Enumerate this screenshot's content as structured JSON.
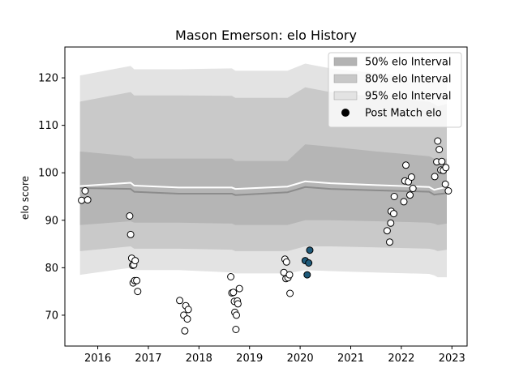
{
  "chart_data": {
    "type": "scatter",
    "title": "Mason Emerson: elo History",
    "xlabel": "",
    "ylabel": "elo score",
    "xlim": [
      2015.35,
      2023.3
    ],
    "ylim": [
      63.5,
      126.5
    ],
    "x_ticks": [
      2016,
      2017,
      2018,
      2019,
      2020,
      2021,
      2022,
      2023
    ],
    "y_ticks": [
      70,
      80,
      90,
      100,
      110,
      120
    ],
    "grid": false,
    "legend_position": "top-right",
    "legend": [
      {
        "label": "50% elo Interval",
        "kind": "band",
        "color": "#b3b3b3"
      },
      {
        "label": "80% elo Interval",
        "kind": "band",
        "color": "#c8c8c8"
      },
      {
        "label": "95% elo Interval",
        "kind": "band",
        "color": "#e3e3e3"
      },
      {
        "label": "Post Match elo",
        "kind": "marker",
        "color": "#000000"
      }
    ],
    "colors": {
      "band_95": "#e3e3e3",
      "band_80": "#c9c9c9",
      "band_50": "#b5b5b5",
      "median_line": "#8c8c8c",
      "mean_line": "#ffffff",
      "point_fill": "#ffffff",
      "highlight_fill": "#1f5a7a",
      "point_edge": "#000000"
    },
    "intervals": {
      "x": [
        2015.65,
        2016.65,
        2016.72,
        2017.6,
        2018.65,
        2018.72,
        2019.75,
        2020.1,
        2020.6,
        2021.5,
        2022.55,
        2022.65,
        2022.72,
        2022.9
      ],
      "upper95": [
        120.5,
        122.5,
        121.8,
        121.8,
        122.0,
        121.5,
        121.5,
        123.0,
        122.0,
        121.0,
        120.0,
        119.5,
        119.0,
        119.5
      ],
      "upper80": [
        115.0,
        117.0,
        116.3,
        116.3,
        116.2,
        115.8,
        115.8,
        118.0,
        117.0,
        116.0,
        115.0,
        114.5,
        114.0,
        114.5
      ],
      "upper50": [
        104.5,
        103.5,
        103.0,
        103.0,
        103.0,
        102.5,
        102.5,
        106.0,
        105.5,
        104.5,
        103.5,
        103.0,
        102.5,
        103.0
      ],
      "lower50": [
        89.0,
        89.8,
        89.5,
        89.5,
        89.3,
        89.0,
        89.0,
        90.0,
        90.0,
        89.8,
        89.5,
        89.3,
        89.0,
        89.3
      ],
      "lower80": [
        83.5,
        84.5,
        84.0,
        84.0,
        83.8,
        83.5,
        83.5,
        84.5,
        84.5,
        84.3,
        84.0,
        83.8,
        83.5,
        83.8
      ],
      "lower95": [
        78.5,
        80.0,
        79.5,
        79.5,
        79.0,
        78.8,
        78.8,
        79.5,
        79.3,
        79.0,
        78.7,
        78.4,
        78.0,
        78.0
      ],
      "median": [
        96.8,
        96.6,
        96.0,
        95.6,
        95.6,
        95.3,
        95.9,
        97.0,
        96.6,
        96.3,
        96.0,
        95.4,
        95.5,
        95.7
      ],
      "mean": [
        97.2,
        97.9,
        97.3,
        96.9,
        96.9,
        96.6,
        97.1,
        98.2,
        97.8,
        97.4,
        97.0,
        96.4,
        96.6,
        97.0
      ]
    },
    "points": [
      {
        "x": 2015.68,
        "y": 94.2
      },
      {
        "x": 2015.75,
        "y": 96.2
      },
      {
        "x": 2015.8,
        "y": 94.3
      },
      {
        "x": 2016.63,
        "y": 90.9
      },
      {
        "x": 2016.65,
        "y": 87.0
      },
      {
        "x": 2016.67,
        "y": 82.0
      },
      {
        "x": 2016.69,
        "y": 80.5
      },
      {
        "x": 2016.71,
        "y": 80.6
      },
      {
        "x": 2016.74,
        "y": 81.5
      },
      {
        "x": 2016.7,
        "y": 76.8
      },
      {
        "x": 2016.73,
        "y": 77.3
      },
      {
        "x": 2016.77,
        "y": 77.3
      },
      {
        "x": 2016.79,
        "y": 75.0
      },
      {
        "x": 2017.62,
        "y": 73.1
      },
      {
        "x": 2017.7,
        "y": 70.0
      },
      {
        "x": 2017.72,
        "y": 66.7
      },
      {
        "x": 2017.74,
        "y": 72.0
      },
      {
        "x": 2017.77,
        "y": 69.2
      },
      {
        "x": 2017.79,
        "y": 71.2
      },
      {
        "x": 2018.63,
        "y": 78.1
      },
      {
        "x": 2018.65,
        "y": 74.7
      },
      {
        "x": 2018.68,
        "y": 74.8
      },
      {
        "x": 2018.7,
        "y": 72.9
      },
      {
        "x": 2018.71,
        "y": 70.6
      },
      {
        "x": 2018.74,
        "y": 70.0
      },
      {
        "x": 2018.76,
        "y": 73.0
      },
      {
        "x": 2018.77,
        "y": 72.4
      },
      {
        "x": 2018.8,
        "y": 75.6
      },
      {
        "x": 2018.73,
        "y": 67.0
      },
      {
        "x": 2019.68,
        "y": 79.0
      },
      {
        "x": 2019.7,
        "y": 81.8
      },
      {
        "x": 2019.73,
        "y": 81.2
      },
      {
        "x": 2019.72,
        "y": 77.7
      },
      {
        "x": 2019.76,
        "y": 77.9
      },
      {
        "x": 2019.79,
        "y": 78.5
      },
      {
        "x": 2019.8,
        "y": 74.6
      },
      {
        "x": 2020.1,
        "y": 81.5,
        "highlight": true
      },
      {
        "x": 2020.14,
        "y": 78.5,
        "highlight": true
      },
      {
        "x": 2020.17,
        "y": 81.0,
        "highlight": true
      },
      {
        "x": 2020.19,
        "y": 83.7,
        "highlight": true
      },
      {
        "x": 2021.72,
        "y": 87.8
      },
      {
        "x": 2021.77,
        "y": 85.4
      },
      {
        "x": 2021.79,
        "y": 89.4
      },
      {
        "x": 2021.8,
        "y": 91.9
      },
      {
        "x": 2021.85,
        "y": 91.4
      },
      {
        "x": 2021.86,
        "y": 95.0
      },
      {
        "x": 2022.05,
        "y": 93.9
      },
      {
        "x": 2022.07,
        "y": 98.3
      },
      {
        "x": 2022.09,
        "y": 101.6
      },
      {
        "x": 2022.14,
        "y": 98.1
      },
      {
        "x": 2022.17,
        "y": 95.3
      },
      {
        "x": 2022.2,
        "y": 99.1
      },
      {
        "x": 2022.23,
        "y": 96.7
      },
      {
        "x": 2022.66,
        "y": 99.2
      },
      {
        "x": 2022.7,
        "y": 102.3
      },
      {
        "x": 2022.72,
        "y": 106.7
      },
      {
        "x": 2022.75,
        "y": 104.9
      },
      {
        "x": 2022.78,
        "y": 100.6
      },
      {
        "x": 2022.8,
        "y": 102.4
      },
      {
        "x": 2022.83,
        "y": 100.5
      },
      {
        "x": 2022.88,
        "y": 101.1
      },
      {
        "x": 2022.87,
        "y": 97.6
      },
      {
        "x": 2022.93,
        "y": 96.2
      }
    ]
  }
}
